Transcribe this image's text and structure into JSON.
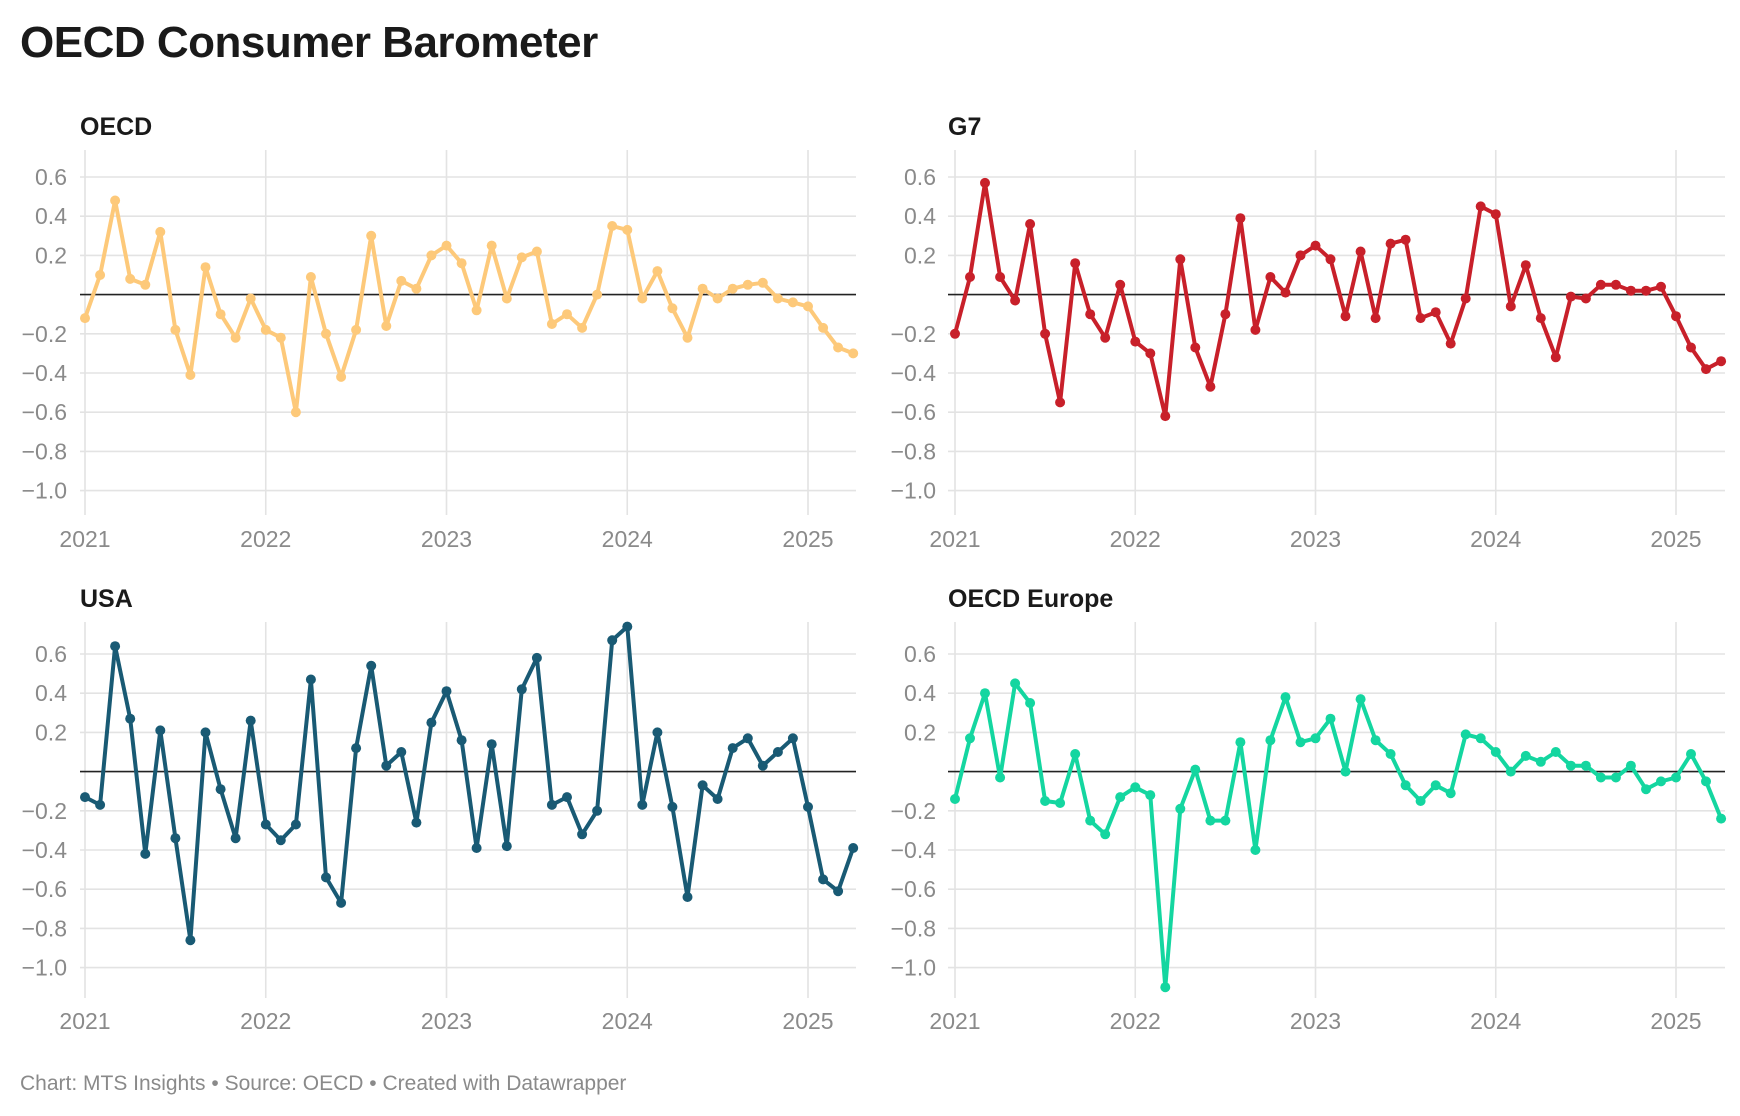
{
  "title": "OECD Consumer Barometer",
  "footer": "Chart: MTS Insights • Source: OECD • Created with Datawrapper",
  "chart_data": [
    {
      "type": "line",
      "title": "OECD",
      "color": "#fdc97a",
      "ylim": [
        -1.0,
        0.7
      ],
      "yticks": [
        0.6,
        0.4,
        0.2,
        -0.2,
        -0.4,
        -0.6,
        -0.8,
        -1.0
      ],
      "ytick_labels": [
        "0.6",
        "0.4",
        "0.2",
        "−0.2",
        "−0.4",
        "−0.6",
        "−0.8",
        "−1.0"
      ],
      "xticks": [
        "2021",
        "2022",
        "2023",
        "2024",
        "2025"
      ],
      "x_start": "2021-01",
      "values": [
        -0.12,
        0.1,
        0.48,
        0.08,
        0.05,
        0.32,
        -0.18,
        -0.41,
        0.14,
        -0.1,
        -0.22,
        -0.02,
        -0.18,
        -0.22,
        -0.6,
        0.09,
        -0.2,
        -0.42,
        -0.18,
        0.3,
        -0.16,
        0.07,
        0.03,
        0.2,
        0.25,
        0.16,
        -0.08,
        0.25,
        -0.02,
        0.19,
        0.22,
        -0.15,
        -0.1,
        -0.17,
        0.0,
        0.35,
        0.33,
        -0.02,
        0.12,
        -0.07,
        -0.22,
        0.03,
        -0.02,
        0.03,
        0.05,
        0.06,
        -0.02,
        -0.04,
        -0.06,
        -0.17,
        -0.27,
        -0.3
      ]
    },
    {
      "type": "line",
      "title": "G7",
      "color": "#c8202a",
      "ylim": [
        -1.0,
        0.7
      ],
      "yticks": [
        0.6,
        0.4,
        0.2,
        -0.2,
        -0.4,
        -0.6,
        -0.8,
        -1.0
      ],
      "ytick_labels": [
        "0.6",
        "0.4",
        "0.2",
        "−0.2",
        "−0.4",
        "−0.6",
        "−0.8",
        "−1.0"
      ],
      "xticks": [
        "2021",
        "2022",
        "2023",
        "2024",
        "2025"
      ],
      "x_start": "2021-01",
      "values": [
        -0.2,
        0.09,
        0.57,
        0.09,
        -0.03,
        0.36,
        -0.2,
        -0.55,
        0.16,
        -0.1,
        -0.22,
        0.05,
        -0.24,
        -0.3,
        -0.62,
        0.18,
        -0.27,
        -0.47,
        -0.1,
        0.39,
        -0.18,
        0.09,
        0.01,
        0.2,
        0.25,
        0.18,
        -0.11,
        0.22,
        -0.12,
        0.26,
        0.28,
        -0.12,
        -0.09,
        -0.25,
        -0.02,
        0.45,
        0.41,
        -0.06,
        0.15,
        -0.12,
        -0.32,
        -0.01,
        -0.02,
        0.05,
        0.05,
        0.02,
        0.02,
        0.04,
        -0.11,
        -0.27,
        -0.38,
        -0.34
      ]
    },
    {
      "type": "line",
      "title": "USA",
      "color": "#195a74",
      "ylim": [
        -1.0,
        0.7
      ],
      "yticks": [
        0.6,
        0.4,
        0.2,
        -0.2,
        -0.4,
        -0.6,
        -0.8,
        -1.0
      ],
      "ytick_labels": [
        "0.6",
        "0.4",
        "0.2",
        "−0.2",
        "−0.4",
        "−0.6",
        "−0.8",
        "−1.0"
      ],
      "xticks": [
        "2021",
        "2022",
        "2023",
        "2024",
        "2025"
      ],
      "x_start": "2021-01",
      "values": [
        -0.13,
        -0.17,
        0.64,
        0.27,
        -0.42,
        0.21,
        -0.34,
        -0.86,
        0.2,
        -0.09,
        -0.34,
        0.26,
        -0.27,
        -0.35,
        -0.27,
        0.47,
        -0.54,
        -0.67,
        0.12,
        0.54,
        0.03,
        0.1,
        -0.26,
        0.25,
        0.41,
        0.16,
        -0.39,
        0.14,
        -0.38,
        0.42,
        0.58,
        -0.17,
        -0.13,
        -0.32,
        -0.2,
        0.67,
        0.74,
        -0.17,
        0.2,
        -0.18,
        -0.64,
        -0.07,
        -0.14,
        0.12,
        0.17,
        0.03,
        0.1,
        0.17,
        -0.18,
        -0.55,
        -0.61,
        -0.39
      ]
    },
    {
      "type": "line",
      "title": "OECD Europe",
      "color": "#14d6a0",
      "ylim": [
        -1.1,
        0.7
      ],
      "yticks": [
        0.6,
        0.4,
        0.2,
        -0.2,
        -0.4,
        -0.6,
        -0.8,
        -1.0
      ],
      "ytick_labels": [
        "0.6",
        "0.4",
        "0.2",
        "−0.2",
        "−0.4",
        "−0.6",
        "−0.8",
        "−1.0"
      ],
      "xticks": [
        "2021",
        "2022",
        "2023",
        "2024",
        "2025"
      ],
      "x_start": "2021-01",
      "values": [
        -0.14,
        0.17,
        0.4,
        -0.03,
        0.45,
        0.35,
        -0.15,
        -0.16,
        0.09,
        -0.25,
        -0.32,
        -0.13,
        -0.08,
        -0.12,
        -1.1,
        -0.19,
        0.01,
        -0.25,
        -0.25,
        0.15,
        -0.4,
        0.16,
        0.38,
        0.15,
        0.17,
        0.27,
        0.0,
        0.37,
        0.16,
        0.09,
        -0.07,
        -0.15,
        -0.07,
        -0.11,
        0.19,
        0.17,
        0.1,
        0.0,
        0.08,
        0.05,
        0.1,
        0.03,
        0.03,
        -0.03,
        -0.03,
        0.03,
        -0.09,
        -0.05,
        -0.03,
        0.09,
        -0.05,
        -0.24
      ]
    }
  ]
}
